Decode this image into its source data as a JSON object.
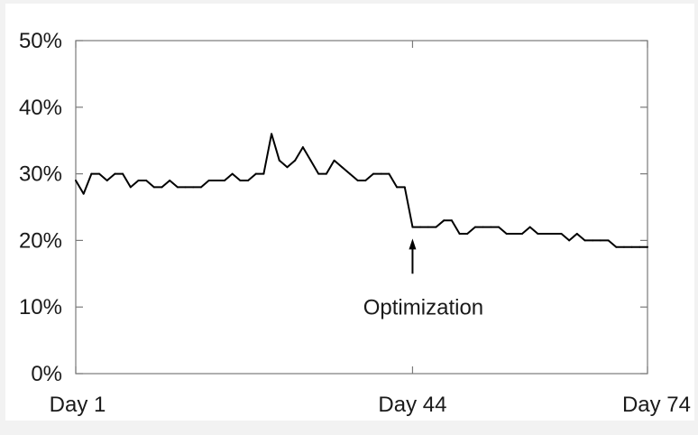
{
  "chart_data": {
    "type": "line",
    "title": "",
    "xlabel": "",
    "ylabel": "",
    "x_ticks": [
      {
        "day": 1,
        "label": "Day 1"
      },
      {
        "day": 44,
        "label": "Day 44"
      },
      {
        "day": 74,
        "label": "Day 74"
      }
    ],
    "y_ticks": [
      {
        "value": 0,
        "label": "0%"
      },
      {
        "value": 10,
        "label": "10%"
      },
      {
        "value": 20,
        "label": "20%"
      },
      {
        "value": 30,
        "label": "30%"
      },
      {
        "value": 40,
        "label": "40%"
      },
      {
        "value": 50,
        "label": "50%"
      }
    ],
    "xlim": [
      1,
      74
    ],
    "ylim": [
      0,
      50
    ],
    "grid": false,
    "series": [
      {
        "x": [
          1,
          2,
          3,
          4,
          5,
          6,
          7,
          8,
          9,
          10,
          11,
          12,
          13,
          14,
          15,
          16,
          17,
          18,
          19,
          20,
          21,
          22,
          23,
          24,
          25,
          26,
          27,
          28,
          29,
          30,
          31,
          32,
          33,
          34,
          35,
          36,
          37,
          38,
          39,
          40,
          41,
          42,
          43,
          44,
          45,
          46,
          47,
          48,
          49,
          50,
          51,
          52,
          53,
          54,
          55,
          56,
          57,
          58,
          59,
          60,
          61,
          62,
          63,
          64,
          65,
          66,
          67,
          68,
          69,
          70,
          71,
          72,
          73,
          74
        ],
        "y": [
          29,
          27,
          30,
          30,
          29,
          30,
          30,
          28,
          29,
          29,
          28,
          28,
          29,
          28,
          28,
          28,
          28,
          29,
          29,
          29,
          30,
          29,
          29,
          30,
          30,
          36,
          32,
          31,
          32,
          34,
          32,
          30,
          30,
          32,
          31,
          30,
          29,
          29,
          30,
          30,
          30,
          28,
          28,
          22,
          22,
          22,
          22,
          23,
          23,
          21,
          21,
          22,
          22,
          22,
          22,
          21,
          21,
          21,
          22,
          21,
          21,
          21,
          21,
          20,
          21,
          20,
          20,
          20,
          20,
          19,
          19,
          19,
          19,
          19
        ],
        "color": "#000000"
      }
    ],
    "annotations": [
      {
        "text": "Optimization",
        "x": 44,
        "arrow_from_y": 15,
        "arrow_to_y": 20
      }
    ]
  }
}
